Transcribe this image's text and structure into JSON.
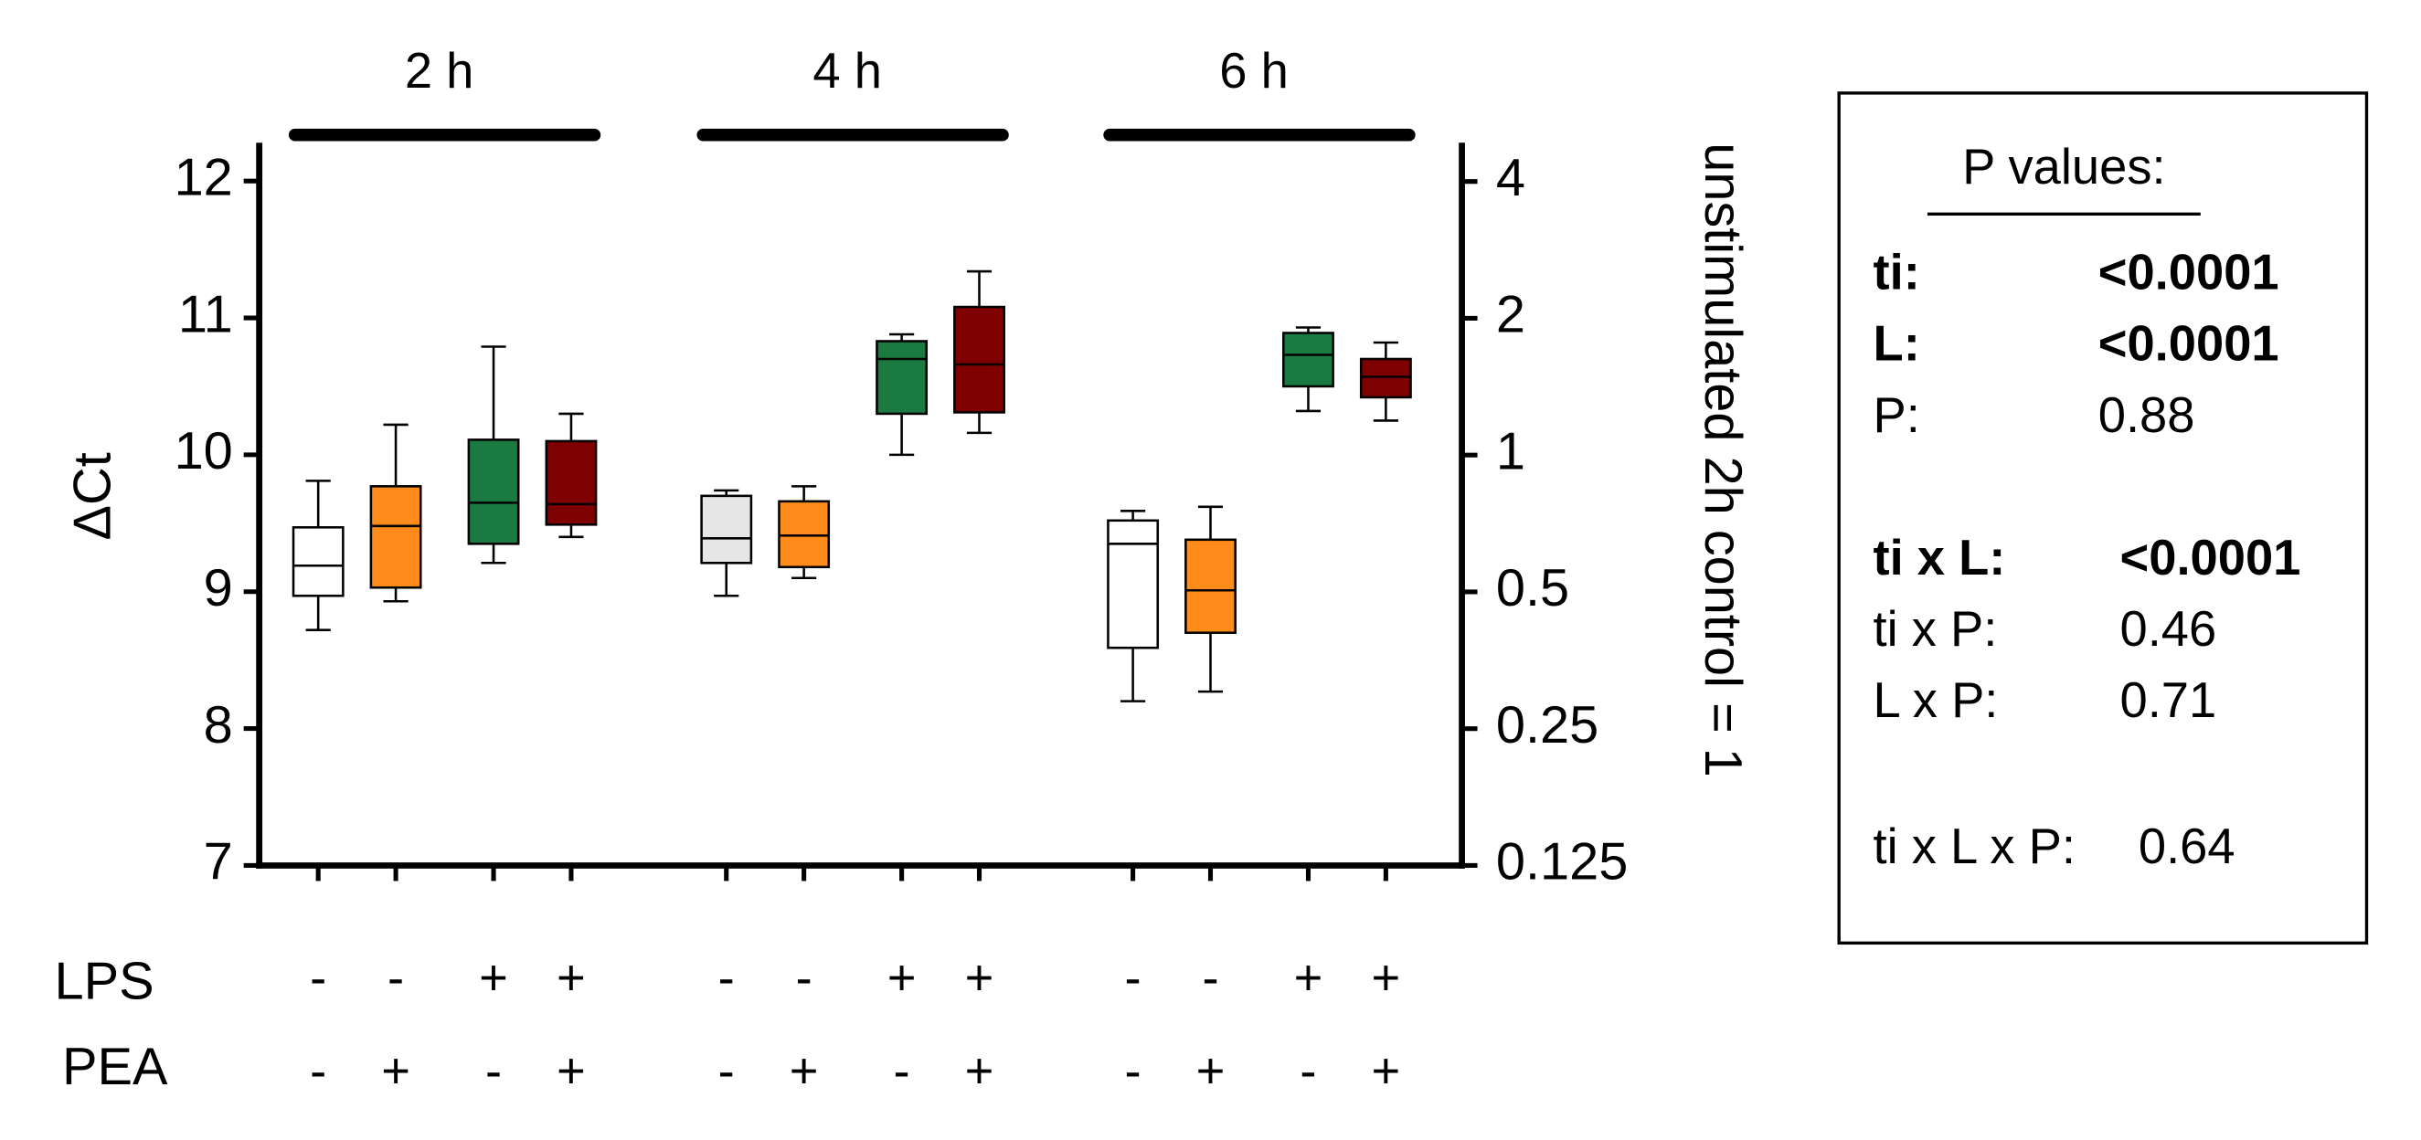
{
  "chart_data": {
    "type": "box",
    "groups": [
      "2 h",
      "4 h",
      "6 h"
    ],
    "ylabel": "ΔCt",
    "y2label": "unstimulated 2h control  = 1",
    "ylim": [
      7,
      12.28
    ],
    "yticks": [
      7,
      8,
      9,
      10,
      11,
      12
    ],
    "y2lim": [
      0.125,
      4.87
    ],
    "y2ticks": [
      0.125,
      0.25,
      0.5,
      1,
      2,
      4
    ],
    "y2scale": "log",
    "row_labels": [
      "LPS",
      "PEA"
    ],
    "lps": [
      "-",
      "-",
      "+",
      "+",
      "-",
      "-",
      "+",
      "+",
      "-",
      "-",
      "+",
      "+"
    ],
    "pea": [
      "-",
      "+",
      "-",
      "+",
      "-",
      "+",
      "-",
      "+",
      "-",
      "+",
      "-",
      "+"
    ],
    "boxes": [
      {
        "color": "#ffffff",
        "whislo": 8.72,
        "q1": 8.97,
        "med": 9.19,
        "q3": 9.47,
        "whishi": 9.81
      },
      {
        "color": "#ff8c1a",
        "whislo": 8.93,
        "q1": 9.03,
        "med": 9.48,
        "q3": 9.77,
        "whishi": 10.22
      },
      {
        "color": "#1a7a40",
        "whislo": 9.21,
        "q1": 9.35,
        "med": 9.65,
        "q3": 10.11,
        "whishi": 10.79
      },
      {
        "color": "#7f0000",
        "whislo": 9.4,
        "q1": 9.49,
        "med": 9.64,
        "q3": 10.1,
        "whishi": 10.3
      },
      {
        "color": "#e6e6e6",
        "whislo": 8.97,
        "q1": 9.21,
        "med": 9.39,
        "q3": 9.7,
        "whishi": 9.74
      },
      {
        "color": "#ff8c1a",
        "whislo": 9.1,
        "q1": 9.18,
        "med": 9.41,
        "q3": 9.66,
        "whishi": 9.77
      },
      {
        "color": "#1a7a40",
        "whislo": 10.0,
        "q1": 10.3,
        "med": 10.7,
        "q3": 10.83,
        "whishi": 10.88
      },
      {
        "color": "#7f0000",
        "whislo": 10.16,
        "q1": 10.31,
        "med": 10.66,
        "q3": 11.08,
        "whishi": 11.34
      },
      {
        "color": "#ffffff",
        "whislo": 8.2,
        "q1": 8.59,
        "med": 9.35,
        "q3": 9.52,
        "whishi": 9.59
      },
      {
        "color": "#ff8c1a",
        "whislo": 8.27,
        "q1": 8.7,
        "med": 9.01,
        "q3": 9.38,
        "whishi": 9.62
      },
      {
        "color": "#1a7a40",
        "whislo": 10.32,
        "q1": 10.5,
        "med": 10.73,
        "q3": 10.89,
        "whishi": 10.93
      },
      {
        "color": "#7f0000",
        "whislo": 10.25,
        "q1": 10.42,
        "med": 10.57,
        "q3": 10.7,
        "whishi": 10.82
      }
    ],
    "p_values": {
      "title": "P values:",
      "groups": [
        [
          {
            "label": "ti:",
            "value": "<0.0001",
            "bold": true
          },
          {
            "label": "L:",
            "value": "<0.0001",
            "bold": true
          },
          {
            "label": "P:",
            "value": "0.88",
            "bold": false
          }
        ],
        [
          {
            "label": "ti x L:",
            "value": "<0.0001",
            "bold": true
          },
          {
            "label": "ti x P:",
            "value": "0.46",
            "bold": false
          },
          {
            "label": "L x P:",
            "value": "0.71",
            "bold": false
          }
        ],
        [
          {
            "label": "ti x L x P:",
            "value": "0.64",
            "bold": false
          }
        ]
      ]
    }
  }
}
